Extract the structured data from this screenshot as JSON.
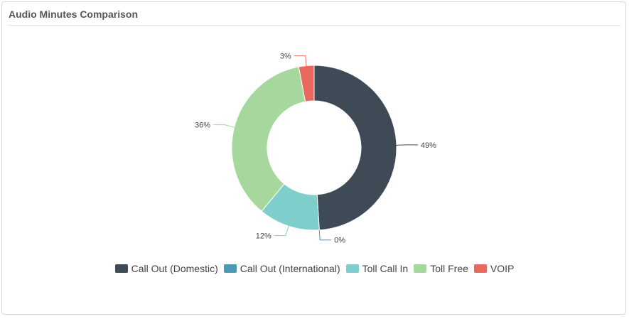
{
  "panel": {
    "title": "Audio Minutes Comparison"
  },
  "chart_data": {
    "type": "pie",
    "variant": "donut",
    "title": "Audio Minutes Comparison",
    "legend_position": "bottom",
    "categories": [
      "Call Out (Domestic)",
      "Call Out (International)",
      "Toll Call In",
      "Toll Free",
      "VOIP"
    ],
    "values": [
      49,
      0,
      12,
      36,
      3
    ],
    "labels": [
      "49%",
      "0%",
      "12%",
      "36%",
      "3%"
    ],
    "colors": [
      "#3f4a57",
      "#4a9ab5",
      "#7ecfcc",
      "#a6d89e",
      "#e8685e"
    ]
  }
}
